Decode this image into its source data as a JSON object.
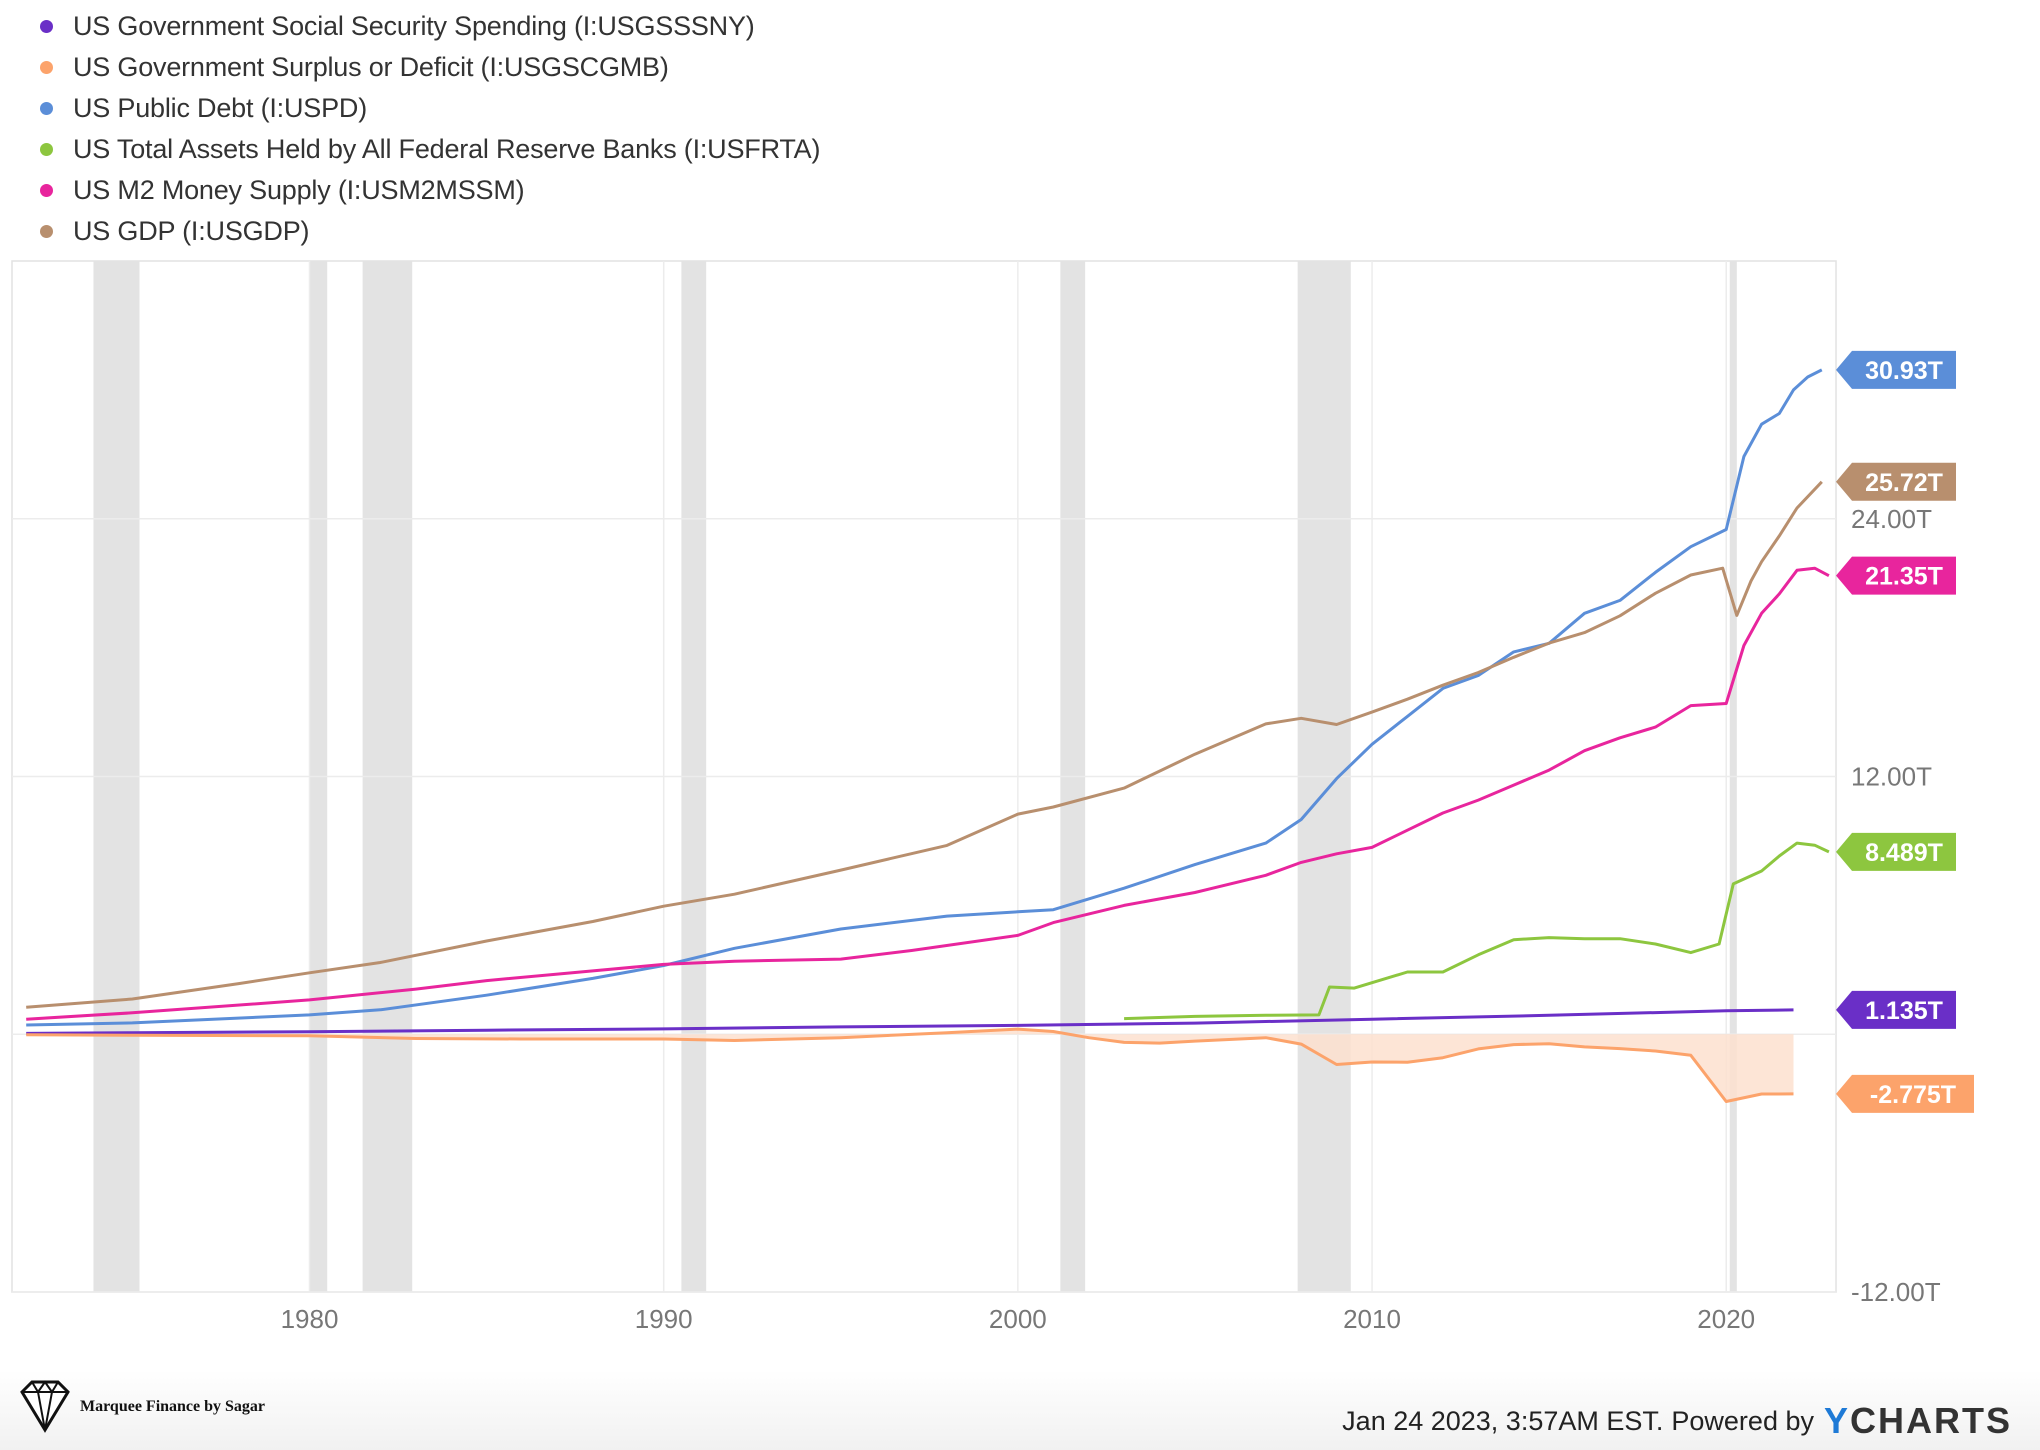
{
  "legend": [
    {
      "label": "US Government Social Security Spending (I:USGSSSNY)",
      "color": "#6a2fc7"
    },
    {
      "label": "US Government Surplus or Deficit (I:USGSCGMB)",
      "color": "#fca36b"
    },
    {
      "label": "US Public Debt (I:USPD)",
      "color": "#5b8ed8"
    },
    {
      "label": "US Total Assets Held by All Federal Reserve Banks (I:USFRTA)",
      "color": "#8dc63f"
    },
    {
      "label": "US M2 Money Supply (I:USM2MSSM)",
      "color": "#e8259d"
    },
    {
      "label": "US GDP (I:USGDP)",
      "color": "#b88f6e"
    }
  ],
  "chart_data": {
    "type": "line",
    "title": "",
    "xlabel": "",
    "ylabel": "",
    "xlim": [
      1971.6,
      2023.1
    ],
    "ylim": [
      -12,
      36
    ],
    "x_ticks": [
      1980,
      1990,
      2000,
      2010,
      2020
    ],
    "x_tick_labels": [
      "1980",
      "1990",
      "2000",
      "2010",
      "2020"
    ],
    "y_ticks": [
      24,
      12,
      -12
    ],
    "y_tick_labels": [
      "24.00T",
      "12.00T",
      "-12.00T"
    ],
    "recessions": [
      [
        1973.9,
        1975.2
      ],
      [
        1980.0,
        1980.5
      ],
      [
        1981.5,
        1982.9
      ],
      [
        1990.5,
        1991.2
      ],
      [
        2001.2,
        2001.9
      ],
      [
        2007.9,
        2009.4
      ],
      [
        2020.1,
        2020.3
      ]
    ],
    "series": [
      {
        "name": "US Government Social Security Spending (I:USGSSSNY)",
        "color": "#6a2fc7",
        "last_label": "1.135T",
        "last_value": 1.135,
        "points": [
          [
            1972,
            0.04
          ],
          [
            1975,
            0.07
          ],
          [
            1980,
            0.12
          ],
          [
            1985,
            0.19
          ],
          [
            1990,
            0.25
          ],
          [
            1995,
            0.34
          ],
          [
            2000,
            0.41
          ],
          [
            2005,
            0.52
          ],
          [
            2010,
            0.7
          ],
          [
            2015,
            0.88
          ],
          [
            2020,
            1.09
          ],
          [
            2021.9,
            1.135
          ]
        ]
      },
      {
        "name": "US Government Surplus or Deficit (I:USGSCGMB)",
        "color": "#fca36b",
        "last_label": "-2.775T",
        "last_value": -2.775,
        "fill": "#fde0cf",
        "points": [
          [
            1972,
            -0.02
          ],
          [
            1975,
            -0.05
          ],
          [
            1980,
            -0.07
          ],
          [
            1983,
            -0.2
          ],
          [
            1986,
            -0.22
          ],
          [
            1990,
            -0.22
          ],
          [
            1992,
            -0.29
          ],
          [
            1995,
            -0.16
          ],
          [
            1998,
            0.07
          ],
          [
            2000,
            0.24
          ],
          [
            2001,
            0.13
          ],
          [
            2002,
            -0.16
          ],
          [
            2003,
            -0.38
          ],
          [
            2004,
            -0.41
          ],
          [
            2005,
            -0.32
          ],
          [
            2007,
            -0.16
          ],
          [
            2008,
            -0.46
          ],
          [
            2009,
            -1.41
          ],
          [
            2010,
            -1.29
          ],
          [
            2011,
            -1.3
          ],
          [
            2012,
            -1.09
          ],
          [
            2013,
            -0.68
          ],
          [
            2014,
            -0.48
          ],
          [
            2015,
            -0.44
          ],
          [
            2016,
            -0.59
          ],
          [
            2017,
            -0.67
          ],
          [
            2018,
            -0.78
          ],
          [
            2019,
            -0.98
          ],
          [
            2020,
            -3.13
          ],
          [
            2021,
            -2.78
          ],
          [
            2021.9,
            -2.775
          ]
        ]
      },
      {
        "name": "US Public Debt (I:USPD)",
        "color": "#5b8ed8",
        "last_label": "30.93T",
        "last_value": 30.93,
        "points": [
          [
            1972,
            0.43
          ],
          [
            1975,
            0.53
          ],
          [
            1980,
            0.9
          ],
          [
            1982,
            1.14
          ],
          [
            1985,
            1.82
          ],
          [
            1988,
            2.6
          ],
          [
            1990,
            3.2
          ],
          [
            1992,
            4.0
          ],
          [
            1995,
            4.9
          ],
          [
            1998,
            5.5
          ],
          [
            2000,
            5.7
          ],
          [
            2001,
            5.8
          ],
          [
            2003,
            6.8
          ],
          [
            2005,
            7.9
          ],
          [
            2007,
            8.9
          ],
          [
            2008,
            10.0
          ],
          [
            2009,
            11.9
          ],
          [
            2010,
            13.5
          ],
          [
            2011,
            14.8
          ],
          [
            2012,
            16.1
          ],
          [
            2013,
            16.7
          ],
          [
            2014,
            17.8
          ],
          [
            2015,
            18.2
          ],
          [
            2016,
            19.6
          ],
          [
            2017,
            20.2
          ],
          [
            2018,
            21.5
          ],
          [
            2019,
            22.7
          ],
          [
            2020,
            23.5
          ],
          [
            2020.5,
            26.9
          ],
          [
            2021,
            28.4
          ],
          [
            2021.5,
            28.9
          ],
          [
            2021.9,
            30.0
          ],
          [
            2022.3,
            30.6
          ],
          [
            2022.7,
            30.93
          ]
        ]
      },
      {
        "name": "US Total Assets Held by All Federal Reserve Banks (I:USFRTA)",
        "color": "#8dc63f",
        "last_label": "8.489T",
        "last_value": 8.489,
        "points": [
          [
            2003,
            0.73
          ],
          [
            2005,
            0.83
          ],
          [
            2007,
            0.88
          ],
          [
            2008.5,
            0.9
          ],
          [
            2008.8,
            2.2
          ],
          [
            2009.5,
            2.15
          ],
          [
            2010,
            2.4
          ],
          [
            2011,
            2.9
          ],
          [
            2012,
            2.9
          ],
          [
            2013,
            3.7
          ],
          [
            2014,
            4.4
          ],
          [
            2015,
            4.5
          ],
          [
            2016,
            4.45
          ],
          [
            2017,
            4.45
          ],
          [
            2018,
            4.2
          ],
          [
            2019,
            3.8
          ],
          [
            2019.8,
            4.2
          ],
          [
            2020.2,
            7.0
          ],
          [
            2021,
            7.6
          ],
          [
            2021.5,
            8.3
          ],
          [
            2022,
            8.9
          ],
          [
            2022.5,
            8.8
          ],
          [
            2022.9,
            8.489
          ]
        ]
      },
      {
        "name": "US M2 Money Supply (I:USM2MSSM)",
        "color": "#e8259d",
        "last_label": "21.35T",
        "last_value": 21.35,
        "points": [
          [
            1972,
            0.7
          ],
          [
            1975,
            1.0
          ],
          [
            1980,
            1.6
          ],
          [
            1983,
            2.1
          ],
          [
            1985,
            2.5
          ],
          [
            1988,
            2.95
          ],
          [
            1990,
            3.25
          ],
          [
            1992,
            3.4
          ],
          [
            1995,
            3.5
          ],
          [
            1997,
            3.9
          ],
          [
            2000,
            4.6
          ],
          [
            2001,
            5.2
          ],
          [
            2003,
            6.0
          ],
          [
            2005,
            6.6
          ],
          [
            2007,
            7.4
          ],
          [
            2008,
            8.0
          ],
          [
            2009,
            8.4
          ],
          [
            2010,
            8.7
          ],
          [
            2011,
            9.5
          ],
          [
            2012,
            10.3
          ],
          [
            2013,
            10.9
          ],
          [
            2014,
            11.6
          ],
          [
            2015,
            12.3
          ],
          [
            2016,
            13.2
          ],
          [
            2017,
            13.8
          ],
          [
            2018,
            14.3
          ],
          [
            2019,
            15.3
          ],
          [
            2020,
            15.4
          ],
          [
            2020.5,
            18.1
          ],
          [
            2021,
            19.6
          ],
          [
            2021.5,
            20.5
          ],
          [
            2022,
            21.6
          ],
          [
            2022.5,
            21.7
          ],
          [
            2022.9,
            21.35
          ]
        ]
      },
      {
        "name": "US GDP (I:USGDP)",
        "color": "#b88f6e",
        "last_label": "25.72T",
        "last_value": 25.72,
        "points": [
          [
            1972,
            1.26
          ],
          [
            1975,
            1.64
          ],
          [
            1978,
            2.36
          ],
          [
            1980,
            2.86
          ],
          [
            1982,
            3.34
          ],
          [
            1985,
            4.34
          ],
          [
            1988,
            5.25
          ],
          [
            1990,
            5.96
          ],
          [
            1992,
            6.52
          ],
          [
            1995,
            7.64
          ],
          [
            1998,
            8.79
          ],
          [
            2000,
            10.25
          ],
          [
            2001,
            10.58
          ],
          [
            2003,
            11.46
          ],
          [
            2005,
            13.04
          ],
          [
            2007,
            14.45
          ],
          [
            2008,
            14.71
          ],
          [
            2009,
            14.42
          ],
          [
            2010,
            15.0
          ],
          [
            2011,
            15.6
          ],
          [
            2012,
            16.25
          ],
          [
            2013,
            16.84
          ],
          [
            2014,
            17.55
          ],
          [
            2015,
            18.21
          ],
          [
            2016,
            18.7
          ],
          [
            2017,
            19.48
          ],
          [
            2018,
            20.53
          ],
          [
            2019,
            21.38
          ],
          [
            2019.9,
            21.7
          ],
          [
            2020.3,
            19.5
          ],
          [
            2020.7,
            21.1
          ],
          [
            2021,
            22.0
          ],
          [
            2021.5,
            23.2
          ],
          [
            2022,
            24.5
          ],
          [
            2022.7,
            25.72
          ]
        ]
      }
    ]
  },
  "footer": {
    "brand": "Marquee Finance by Sagar",
    "timestamp": "Jan 24 2023, 3:57AM EST.",
    "powered_by": "Powered by",
    "logo": "YCHARTS"
  }
}
